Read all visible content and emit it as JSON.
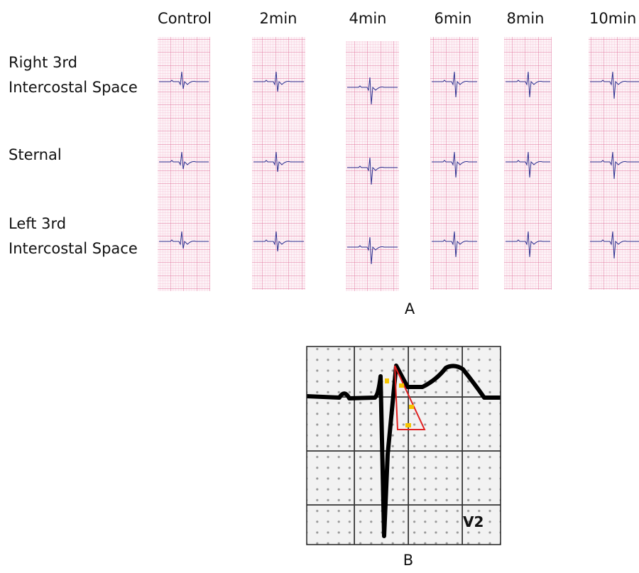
{
  "panel_a": {
    "label": "A",
    "columns": [
      "Control",
      "2min",
      "4min",
      "6min",
      "8min",
      "10min"
    ],
    "rows": [
      {
        "lines": [
          "Right 3rd",
          "Intercostal Space"
        ]
      },
      {
        "lines": [
          "Sternal"
        ]
      },
      {
        "lines": [
          "Left 3rd",
          "Intercostal Space"
        ]
      }
    ]
  },
  "panel_b": {
    "label": "B",
    "lead": "V2"
  }
}
